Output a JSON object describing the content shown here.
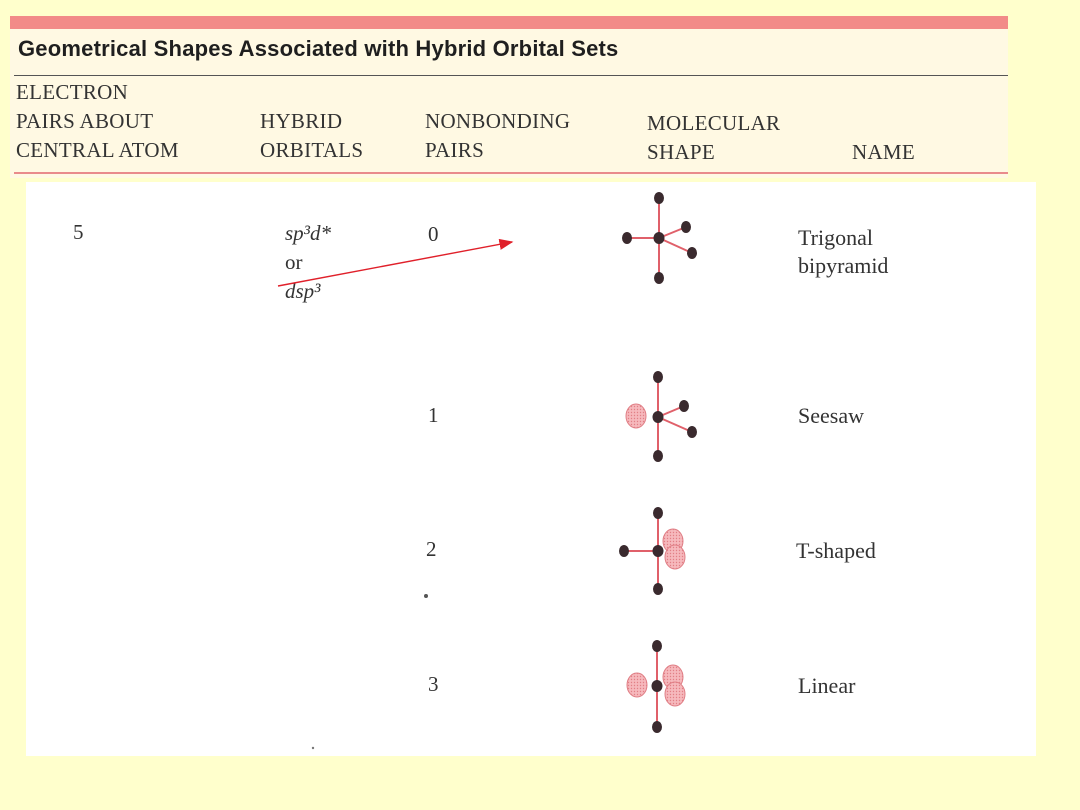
{
  "title": "Geometrical Shapes Associated with Hybrid Orbital Sets",
  "headers": {
    "electron_pairs": [
      "ELECTRON",
      "PAIRS ABOUT",
      "CENTRAL ATOM"
    ],
    "hybrid_orbitals": [
      "HYBRID",
      "ORBITALS"
    ],
    "nonbonding_pairs": [
      "NONBONDING",
      "PAIRS"
    ],
    "molecular_shape": [
      "MOLECULAR",
      "SHAPE"
    ],
    "name": "NAME"
  },
  "electron_pairs_value": "5",
  "hybrid": {
    "line1": "sp³d*",
    "line2": "or",
    "line3": "dsp³"
  },
  "rows": [
    {
      "nonbonding": "0",
      "name_lines": [
        "Trigonal",
        "bipyramid"
      ]
    },
    {
      "nonbonding": "1",
      "name_lines": [
        "Seesaw"
      ]
    },
    {
      "nonbonding": "2",
      "name_lines": [
        "T-shaped"
      ]
    },
    {
      "nonbonding": "3",
      "name_lines": [
        "Linear"
      ]
    }
  ],
  "colors": {
    "background": "#ffffcc",
    "bond": "#e0606a",
    "atom": "#3a2a2e",
    "lone_pair": "#f2a3a8",
    "arrow": "#e0202a"
  }
}
